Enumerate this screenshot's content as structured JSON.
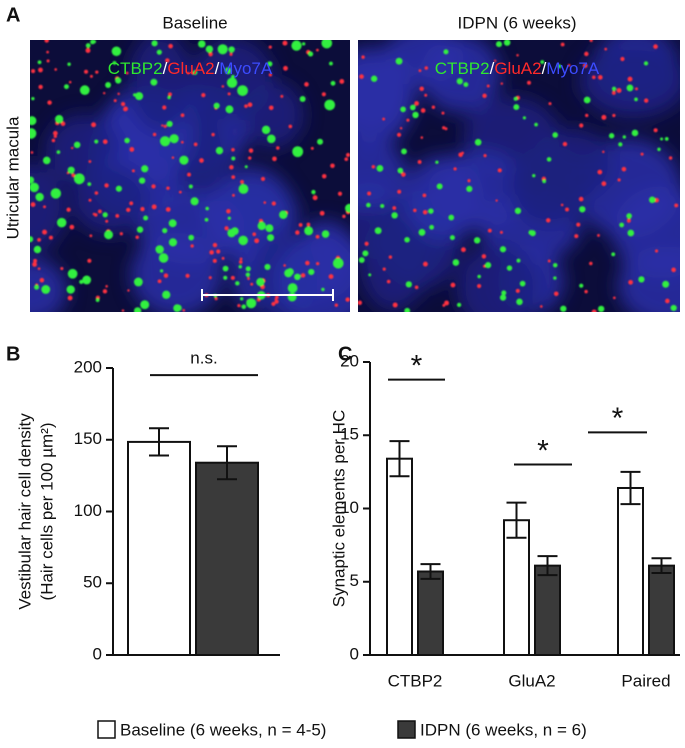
{
  "panel_a": {
    "letter": "A",
    "row_label": "Utricular macula",
    "images": [
      {
        "title": "Baseline"
      },
      {
        "title": "IDPN (6 weeks)"
      }
    ],
    "stain": [
      {
        "text": "CTBP2",
        "color": "#2fe82f"
      },
      {
        "text": "/",
        "color": "#ffffff"
      },
      {
        "text": "GluA2",
        "color": "#ff2a2a"
      },
      {
        "text": "/",
        "color": "#ffffff"
      },
      {
        "text": "Myo7A",
        "color": "#3c4cff"
      }
    ]
  },
  "chart_data": [
    {
      "type": "bar",
      "letter": "B",
      "y_label": [
        "Vestibular hair cell density",
        "(Hair cells per 100 µm²)"
      ],
      "categories": [
        null
      ],
      "series": [
        {
          "name": "Baseline",
          "color": "#ffffff",
          "values": [
            148.5
          ],
          "errors": [
            9.5
          ]
        },
        {
          "name": "IDPN",
          "color": "#3a3a3a",
          "values": [
            134
          ],
          "errors": [
            11.5
          ]
        }
      ],
      "ylim": [
        0,
        200
      ],
      "yticks": [
        0,
        50,
        100,
        150,
        200
      ],
      "annotations": [
        {
          "text": "n.s.",
          "y": 195
        }
      ]
    },
    {
      "type": "bar",
      "letter": "C",
      "y_label": [
        "Synaptic elements per HC"
      ],
      "categories": [
        "CTBP2",
        "GluA2",
        "Paired"
      ],
      "series": [
        {
          "name": "Baseline (6 weeks, n = 4-5)",
          "color": "#ffffff",
          "values": [
            13.4,
            9.2,
            11.4
          ],
          "errors": [
            1.2,
            1.2,
            1.1
          ]
        },
        {
          "name": "IDPN (6 weeks, n = 6)",
          "color": "#3a3a3a",
          "values": [
            5.7,
            6.1,
            6.1
          ],
          "errors": [
            0.5,
            0.65,
            0.5
          ]
        }
      ],
      "ylim": [
        0,
        20
      ],
      "yticks": [
        0,
        5,
        10,
        15,
        20
      ],
      "annotations": [
        {
          "text": "*",
          "y": 18.8
        },
        {
          "text": "*",
          "y": 13.0
        },
        {
          "text": "*",
          "y": 15.2
        }
      ]
    }
  ]
}
